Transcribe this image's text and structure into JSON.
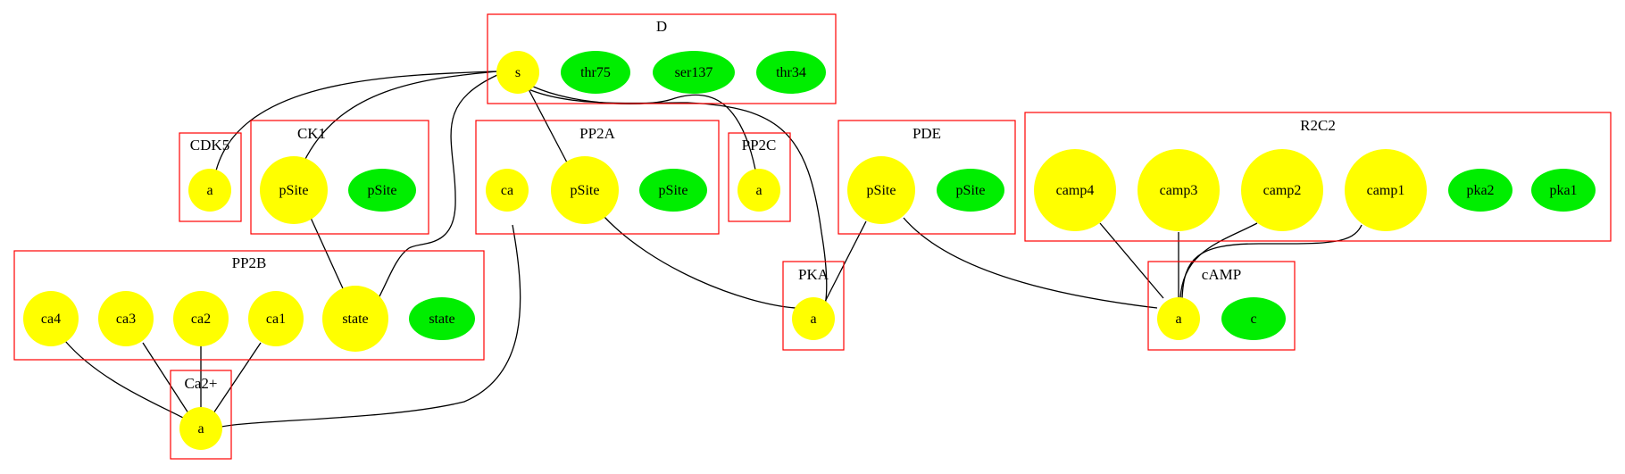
{
  "colors": {
    "active": "#ffff00",
    "inactive": "#00ee00",
    "cluster_border": "#ff0000",
    "edge": "#000000"
  },
  "clusters": {
    "D": {
      "label": "D"
    },
    "CDK5": {
      "label": "CDK5"
    },
    "CK1": {
      "label": "CK1"
    },
    "PP2A": {
      "label": "PP2A"
    },
    "PP2C": {
      "label": "PP2C"
    },
    "PDE": {
      "label": "PDE"
    },
    "R2C2": {
      "label": "R2C2"
    },
    "PP2B": {
      "label": "PP2B"
    },
    "PKA": {
      "label": "PKA"
    },
    "cAMP": {
      "label": "cAMP"
    },
    "Ca2": {
      "label": "Ca2+"
    }
  },
  "nodes": {
    "D_s": "s",
    "D_thr75": "thr75",
    "D_ser137": "ser137",
    "D_thr34": "thr34",
    "CDK5_a": "a",
    "CK1_pSite_on": "pSite",
    "CK1_pSite_off": "pSite",
    "PP2A_ca": "ca",
    "PP2A_pSite_on": "pSite",
    "PP2A_pSite_off": "pSite",
    "PP2C_a": "a",
    "PDE_pSite_on": "pSite",
    "PDE_pSite_off": "pSite",
    "R2C2_camp4": "camp4",
    "R2C2_camp3": "camp3",
    "R2C2_camp2": "camp2",
    "R2C2_camp1": "camp1",
    "R2C2_pka2": "pka2",
    "R2C2_pka1": "pka1",
    "PP2B_ca4": "ca4",
    "PP2B_ca3": "ca3",
    "PP2B_ca2": "ca2",
    "PP2B_ca1": "ca1",
    "PP2B_state_on": "state",
    "PP2B_state_off": "state",
    "PKA_a": "a",
    "cAMP_a": "a",
    "cAMP_c": "c",
    "Ca2_a": "a"
  }
}
